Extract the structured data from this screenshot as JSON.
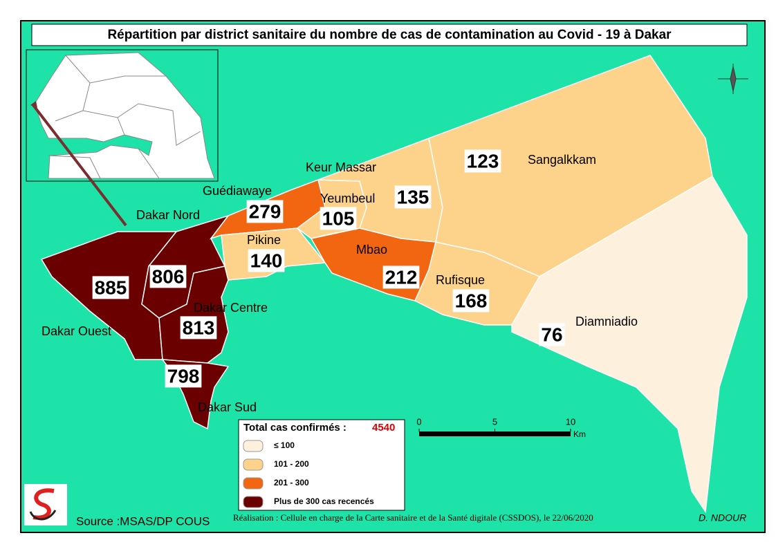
{
  "title": "Répartition par district sanitaire du nombre de cas de contamination au Covid - 19 à Dakar",
  "districts": [
    {
      "name": "Dakar Ouest",
      "count": "885",
      "color": "#6b0000"
    },
    {
      "name": "Dakar Nord",
      "count": "806",
      "color": "#6b0000"
    },
    {
      "name": "Dakar Centre",
      "count": "813",
      "color": "#6b0000"
    },
    {
      "name": "Dakar Sud",
      "count": "798",
      "color": "#6b0000"
    },
    {
      "name": "Guédiawaye",
      "count": "279",
      "color": "#f26511"
    },
    {
      "name": "Pikine",
      "count": "140",
      "color": "#fdd28a"
    },
    {
      "name": "Yeumbeul",
      "count": "105",
      "color": "#fdd28a"
    },
    {
      "name": "Keur Massar",
      "count": "135",
      "color": "#fdd28a"
    },
    {
      "name": "Mbao",
      "count": "212",
      "color": "#f26511"
    },
    {
      "name": "Rufisque",
      "count": "168",
      "color": "#fdd28a"
    },
    {
      "name": "Sangalkkam",
      "count": "123",
      "color": "#fdd28a"
    },
    {
      "name": "Diamniadio",
      "count": "76",
      "color": "#fdf0dc"
    }
  ],
  "legend": {
    "title": "Total cas confirmés :",
    "total": "4540",
    "classes": [
      {
        "label": "≤ 100",
        "color": "#fdf0dc"
      },
      {
        "label": "101 - 200",
        "color": "#fdd28a"
      },
      {
        "label": "201 - 300",
        "color": "#f26511"
      },
      {
        "label": "Plus de 300 cas recencés",
        "color": "#6b0000"
      }
    ]
  },
  "scale": {
    "ticks": [
      0,
      5,
      10
    ],
    "unit": "Km"
  },
  "source": "Source :MSAS/DP COUS",
  "credit": "Réalisation : Cellule en charge  de la Carte sanitaire et de la Santé digitale  (CSSDOS), le 22/06/2020",
  "author": "D. NDOUR"
}
